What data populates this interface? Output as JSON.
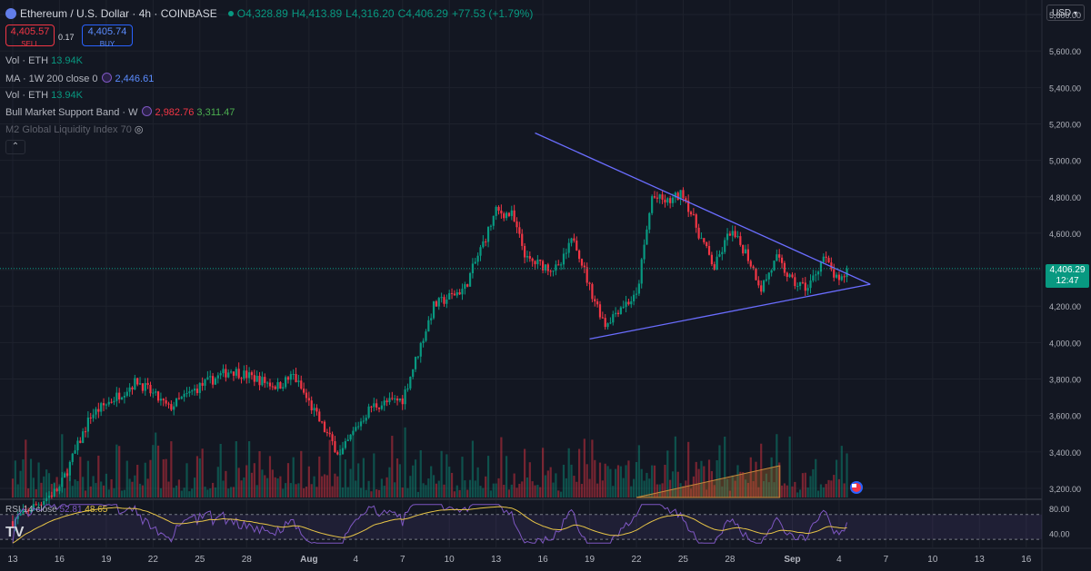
{
  "header": {
    "title": "Ethereum / U.S. Dollar · 4h · COINBASE",
    "open": "O4,328.89",
    "high": "H4,413.89",
    "low": "L4,316.20",
    "close": "C4,406.29",
    "change": "+77.53 (+1.79%)"
  },
  "trade": {
    "sell_price": "4,405.57",
    "sell_label": "SELL",
    "spread": "0.17",
    "buy_price": "4,405.74",
    "buy_label": "BUY"
  },
  "indicators": [
    {
      "name": "Vol · ETH",
      "value": "13.94K"
    },
    {
      "name": "MA · 1W 200 close 0",
      "value": "2,446.61"
    },
    {
      "name": "Vol · ETH",
      "value": "13.94K"
    },
    {
      "name": "Bull Market Support Band · W",
      "value1": "2,982.76",
      "value2": "3,311.47"
    },
    {
      "name": "M2 Global Liquidity Index 70"
    }
  ],
  "currency": "USD",
  "price_tag": {
    "price": "4,406.29",
    "countdown": "12:47"
  },
  "rsi": {
    "label": "RSI 14 close",
    "value1": "52.81",
    "value2": "48.65"
  },
  "colors": {
    "background": "#131722",
    "up": "#089981",
    "down": "#f23645",
    "trendline": "#6a6dff",
    "rsi_line": "#7e57c2",
    "rsi_ma": "#e8c547"
  },
  "chart_data": {
    "type": "candlestick",
    "price_axis": {
      "ticks": [
        "3,200.00",
        "3,400.00",
        "3,600.00",
        "3,800.00",
        "4,000.00",
        "4,200.00",
        "4,400.00",
        "4,600.00",
        "4,800.00",
        "5,000.00",
        "5,200.00",
        "5,400.00",
        "5,600.00",
        "5,800.00"
      ],
      "range": [
        3150,
        5830
      ]
    },
    "rsi_axis": {
      "ticks": [
        "80.00",
        "40.00"
      ],
      "range": [
        20,
        90
      ]
    },
    "time_axis": {
      "ticks": [
        "13",
        "16",
        "19",
        "22",
        "25",
        "28",
        "Aug",
        "4",
        "7",
        "10",
        "13",
        "16",
        "19",
        "22",
        "25",
        "28",
        "Sep",
        "4",
        "7",
        "10",
        "13",
        "16"
      ],
      "day_index": [
        0,
        3,
        6,
        9,
        12,
        15,
        19,
        22,
        25,
        28,
        31,
        34,
        37,
        40,
        43,
        46,
        50,
        53,
        56,
        59,
        62,
        65
      ]
    },
    "close_path": [
      {
        "day": 0,
        "price": 3020
      },
      {
        "day": 3,
        "price": 3200
      },
      {
        "day": 5,
        "price": 3600
      },
      {
        "day": 8,
        "price": 3790
      },
      {
        "day": 10,
        "price": 3640
      },
      {
        "day": 12,
        "price": 3760
      },
      {
        "day": 14,
        "price": 3850
      },
      {
        "day": 17,
        "price": 3760
      },
      {
        "day": 18,
        "price": 3820
      },
      {
        "day": 20,
        "price": 3520
      },
      {
        "day": 21,
        "price": 3380
      },
      {
        "day": 22,
        "price": 3530
      },
      {
        "day": 23,
        "price": 3650
      },
      {
        "day": 25,
        "price": 3690
      },
      {
        "day": 27,
        "price": 4200
      },
      {
        "day": 29,
        "price": 4300
      },
      {
        "day": 31,
        "price": 4720
      },
      {
        "day": 32,
        "price": 4700
      },
      {
        "day": 33,
        "price": 4450
      },
      {
        "day": 35,
        "price": 4400
      },
      {
        "day": 36,
        "price": 4580
      },
      {
        "day": 37,
        "price": 4300
      },
      {
        "day": 38,
        "price": 4100
      },
      {
        "day": 39,
        "price": 4200
      },
      {
        "day": 40,
        "price": 4250
      },
      {
        "day": 41,
        "price": 4800
      },
      {
        "day": 42,
        "price": 4770
      },
      {
        "day": 43,
        "price": 4820
      },
      {
        "day": 44,
        "price": 4600
      },
      {
        "day": 45,
        "price": 4410
      },
      {
        "day": 46,
        "price": 4610
      },
      {
        "day": 47,
        "price": 4500
      },
      {
        "day": 48,
        "price": 4300
      },
      {
        "day": 49,
        "price": 4460
      },
      {
        "day": 50,
        "price": 4330
      },
      {
        "day": 51,
        "price": 4300
      },
      {
        "day": 52,
        "price": 4470
      },
      {
        "day": 53,
        "price": 4320
      },
      {
        "day": 53.6,
        "price": 4406
      }
    ],
    "trendlines": [
      {
        "from": {
          "day": 33.5,
          "price": 5150
        },
        "to": {
          "day": 55.0,
          "price": 4320
        }
      },
      {
        "from": {
          "day": 37.0,
          "price": 4020
        },
        "to": {
          "day": 55.0,
          "price": 4320
        }
      }
    ]
  }
}
